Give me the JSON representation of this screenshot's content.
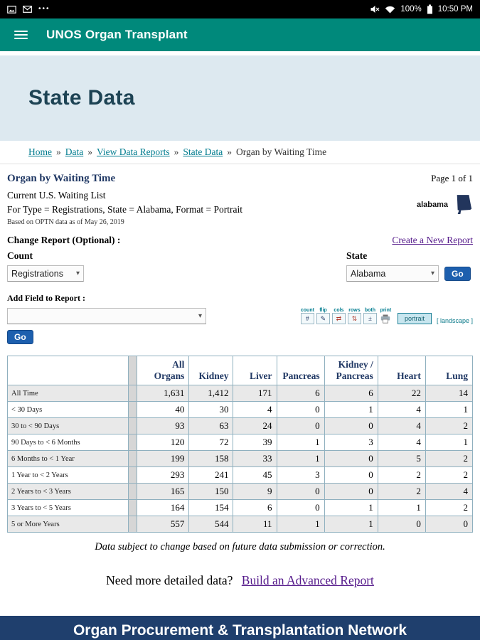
{
  "status_bar": {
    "time": "10:50 PM",
    "battery_percent": "100%"
  },
  "app_bar": {
    "title": "UNOS Organ Transplant"
  },
  "hero": {
    "title": "State Data"
  },
  "breadcrumb": {
    "separator": "»",
    "items": [
      {
        "label": "Home",
        "link": true
      },
      {
        "label": "Data",
        "link": true
      },
      {
        "label": "View Data Reports",
        "link": true
      },
      {
        "label": "State Data",
        "link": true
      },
      {
        "label": "Organ by Waiting Time",
        "link": false
      }
    ]
  },
  "report": {
    "title": "Organ by Waiting Time",
    "page_info": "Page 1 of 1",
    "line1": "Current U.S. Waiting List",
    "line2": "For Type = Registrations, State = Alabama, Format = Portrait",
    "based_on": "Based on OPTN data as of May 26, 2019",
    "state_name": "alabama"
  },
  "controls": {
    "change_report_label": "Change Report (Optional) :",
    "create_new_report_label": "Create a New Report",
    "count_label": "Count",
    "state_label": "State",
    "count_value": "Registrations",
    "state_value": "Alabama",
    "go_label": "Go",
    "add_field_label": "Add Field to Report :",
    "add_field_value": ""
  },
  "toolbar": {
    "mini": [
      {
        "label": "count",
        "glyph": "#",
        "color": "#203864"
      },
      {
        "label": "flip",
        "glyph": "✎",
        "color": "#203864"
      },
      {
        "label": "cols",
        "glyph": "⇄",
        "color": "#b03a2e"
      },
      {
        "label": "rows",
        "glyph": "⇅",
        "color": "#b03a2e"
      },
      {
        "label": "both",
        "glyph": "±",
        "color": "#203864"
      },
      {
        "label": "print",
        "glyph": "",
        "color": "#555555"
      }
    ],
    "portrait_label": "portrait",
    "landscape_label": "[ landscape ]"
  },
  "table": {
    "columns": [
      "All Organs",
      "Kidney",
      "Liver",
      "Pancreas",
      "Kidney / Pancreas",
      "Heart",
      "Lung"
    ],
    "rows": [
      {
        "label": "All Time",
        "values": [
          "1,631",
          "1,412",
          "171",
          "6",
          "6",
          "22",
          "14"
        ]
      },
      {
        "label": "< 30 Days",
        "values": [
          "40",
          "30",
          "4",
          "0",
          "1",
          "4",
          "1"
        ]
      },
      {
        "label": "30 to < 90 Days",
        "values": [
          "93",
          "63",
          "24",
          "0",
          "0",
          "4",
          "2"
        ]
      },
      {
        "label": "90 Days to < 6 Months",
        "values": [
          "120",
          "72",
          "39",
          "1",
          "3",
          "4",
          "1"
        ]
      },
      {
        "label": "6 Months to < 1 Year",
        "values": [
          "199",
          "158",
          "33",
          "1",
          "0",
          "5",
          "2"
        ]
      },
      {
        "label": "1 Year to < 2 Years",
        "values": [
          "293",
          "241",
          "45",
          "3",
          "0",
          "2",
          "2"
        ]
      },
      {
        "label": "2 Years to < 3 Years",
        "values": [
          "165",
          "150",
          "9",
          "0",
          "0",
          "2",
          "4"
        ]
      },
      {
        "label": "3 Years to < 5 Years",
        "values": [
          "164",
          "154",
          "6",
          "0",
          "1",
          "1",
          "2"
        ]
      },
      {
        "label": "5 or More Years",
        "values": [
          "557",
          "544",
          "11",
          "1",
          "1",
          "0",
          "0"
        ]
      }
    ]
  },
  "notes": {
    "disclaimer": "Data subject to change based on future data submission or correction.",
    "cta_text": "Need more detailed data?",
    "cta_link": "Build an Advanced Report"
  },
  "footer": {
    "title": "Organ Procurement & Transplantation Network"
  },
  "colors": {
    "app_bar_teal": "#00897b",
    "hero_background": "#dde9f0",
    "breadcrumb_link_teal": "#007c8f",
    "heading_navy": "#203864",
    "visited_link": "#551a8b",
    "go_button_blue": "#1d5fae",
    "table_border": "#8fb0bf",
    "row_stripe": "#e9e9e9",
    "footer_navy": "#1f3f6d"
  }
}
